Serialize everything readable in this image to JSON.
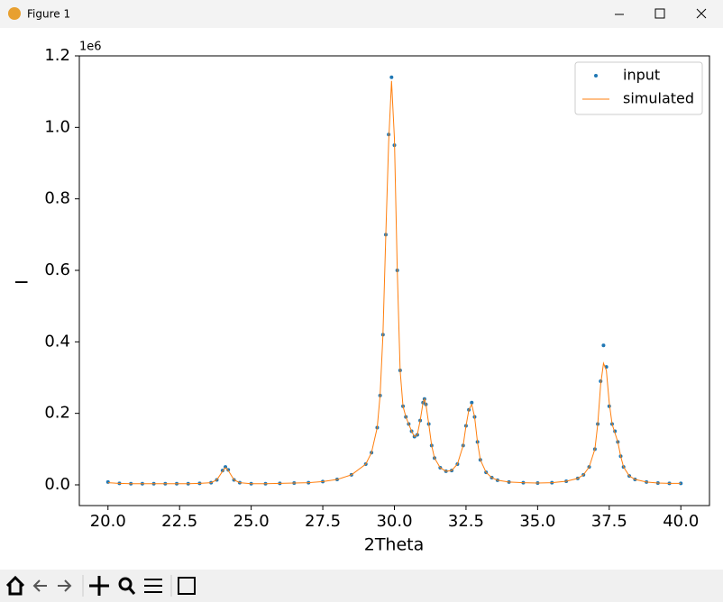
{
  "window": {
    "title": "Figure 1"
  },
  "chart_data": {
    "type": "scatter-line",
    "xlabel": "2Theta",
    "ylabel": "I",
    "y_offset_label": "1e6",
    "xlim": [
      19.0,
      41.0
    ],
    "ylim": [
      -0.058,
      1.2
    ],
    "xticks": [
      {
        "value": 20,
        "label": "20.0"
      },
      {
        "value": 22.5,
        "label": "22.5"
      },
      {
        "value": 25,
        "label": "25.0"
      },
      {
        "value": 27.5,
        "label": "27.5"
      },
      {
        "value": 30,
        "label": "30.0"
      },
      {
        "value": 32.5,
        "label": "32.5"
      },
      {
        "value": 35,
        "label": "35.0"
      },
      {
        "value": 37.5,
        "label": "37.5"
      },
      {
        "value": 40,
        "label": "40.0"
      }
    ],
    "yticks": [
      {
        "value": 0,
        "label": "0.0"
      },
      0.2,
      0.4,
      0.6,
      0.8,
      {
        "value": 1,
        "label": "1.0"
      },
      1.2
    ],
    "legend": "upper right",
    "grid": false,
    "x": [
      20.0,
      20.4,
      20.8,
      21.2,
      21.6,
      22.0,
      22.4,
      22.8,
      23.2,
      23.6,
      23.8,
      24.0,
      24.1,
      24.2,
      24.4,
      24.6,
      25.0,
      25.5,
      26.0,
      26.5,
      27.0,
      27.5,
      28.0,
      28.5,
      29.0,
      29.2,
      29.4,
      29.5,
      29.6,
      29.7,
      29.8,
      29.9,
      30.0,
      30.1,
      30.2,
      30.3,
      30.4,
      30.5,
      30.6,
      30.7,
      30.8,
      30.9,
      31.0,
      31.05,
      31.1,
      31.2,
      31.3,
      31.4,
      31.6,
      31.8,
      32.0,
      32.2,
      32.4,
      32.5,
      32.6,
      32.7,
      32.8,
      32.9,
      33.0,
      33.2,
      33.4,
      33.6,
      34.0,
      34.5,
      35.0,
      35.5,
      36.0,
      36.4,
      36.6,
      36.8,
      37.0,
      37.1,
      37.2,
      37.3,
      37.4,
      37.5,
      37.6,
      37.7,
      37.8,
      37.9,
      38.0,
      38.2,
      38.4,
      38.8,
      39.2,
      39.6,
      40.0
    ],
    "series": [
      {
        "name": "input",
        "style": "points",
        "color": "#1f77b4",
        "values": [
          0.008,
          0.004,
          0.003,
          0.003,
          0.003,
          0.003,
          0.003,
          0.003,
          0.004,
          0.006,
          0.014,
          0.04,
          0.05,
          0.042,
          0.014,
          0.006,
          0.003,
          0.003,
          0.004,
          0.005,
          0.006,
          0.009,
          0.015,
          0.028,
          0.058,
          0.09,
          0.16,
          0.25,
          0.42,
          0.7,
          0.98,
          1.14,
          0.95,
          0.6,
          0.32,
          0.22,
          0.19,
          0.17,
          0.15,
          0.135,
          0.14,
          0.18,
          0.23,
          0.24,
          0.225,
          0.17,
          0.11,
          0.075,
          0.048,
          0.038,
          0.04,
          0.058,
          0.11,
          0.165,
          0.21,
          0.23,
          0.19,
          0.12,
          0.07,
          0.035,
          0.02,
          0.013,
          0.008,
          0.006,
          0.005,
          0.006,
          0.01,
          0.018,
          0.028,
          0.05,
          0.1,
          0.17,
          0.29,
          0.39,
          0.33,
          0.22,
          0.17,
          0.15,
          0.12,
          0.08,
          0.05,
          0.025,
          0.015,
          0.008,
          0.005,
          0.004,
          0.004
        ]
      },
      {
        "name": "simulated",
        "style": "line",
        "color": "#ff7f0e",
        "values": [
          0.006,
          0.004,
          0.003,
          0.003,
          0.003,
          0.003,
          0.003,
          0.003,
          0.004,
          0.006,
          0.014,
          0.038,
          0.048,
          0.04,
          0.014,
          0.006,
          0.003,
          0.003,
          0.004,
          0.005,
          0.006,
          0.009,
          0.015,
          0.028,
          0.058,
          0.09,
          0.16,
          0.25,
          0.42,
          0.7,
          0.96,
          1.13,
          0.97,
          0.6,
          0.32,
          0.22,
          0.19,
          0.17,
          0.15,
          0.135,
          0.14,
          0.18,
          0.23,
          0.24,
          0.225,
          0.17,
          0.11,
          0.075,
          0.048,
          0.038,
          0.04,
          0.058,
          0.11,
          0.165,
          0.21,
          0.225,
          0.19,
          0.12,
          0.07,
          0.035,
          0.02,
          0.013,
          0.008,
          0.006,
          0.005,
          0.006,
          0.01,
          0.018,
          0.028,
          0.05,
          0.1,
          0.17,
          0.28,
          0.34,
          0.32,
          0.23,
          0.17,
          0.145,
          0.12,
          0.08,
          0.05,
          0.025,
          0.015,
          0.008,
          0.005,
          0.004,
          0.004
        ]
      }
    ]
  }
}
